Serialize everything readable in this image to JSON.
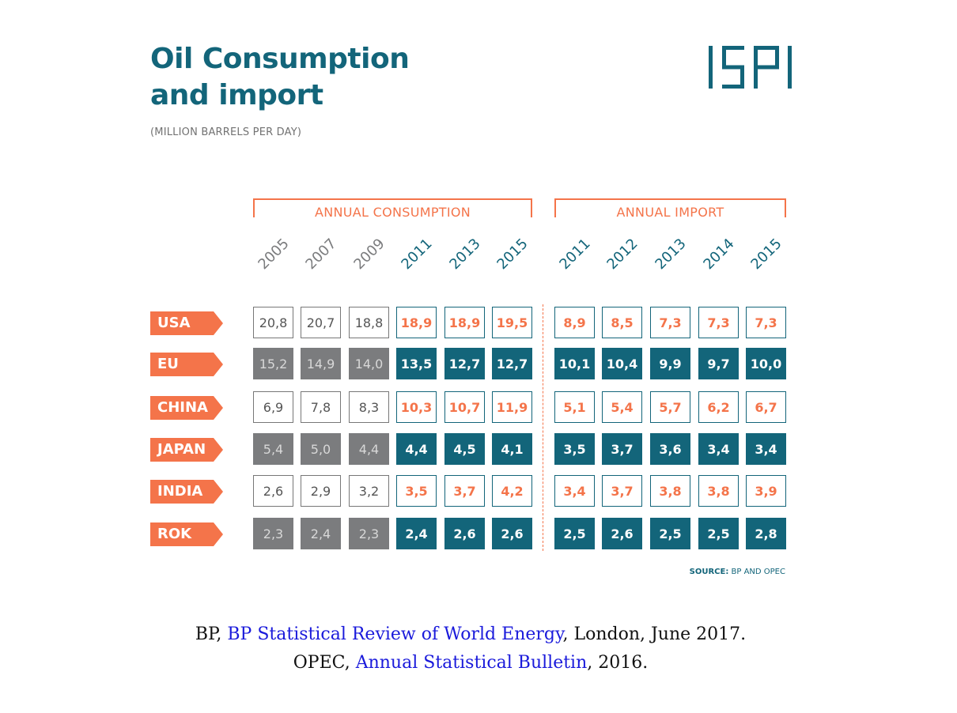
{
  "title_line1": "Oil Consumption",
  "title_line2": "and import",
  "subtitle": "(MILLION BARRELS PER DAY)",
  "logo": {
    "text": "ISPI",
    "color": "#13657a"
  },
  "colors": {
    "teal": "#13657a",
    "orange": "#f4744a",
    "gray": "#7b7c7e",
    "outline_gray": "#777777",
    "light_text": "#d8d8d8"
  },
  "source": {
    "label": "SOURCE:",
    "text": "BP AND OPEC"
  },
  "references": [
    {
      "prefix": "BP, ",
      "link": "BP Statistical Review of World Energy",
      "suffix": ", London, June 2017."
    },
    {
      "prefix": "OPEC, ",
      "link": "Annual Statistical Bulletin",
      "suffix": ", 2016."
    }
  ],
  "chart_data": {
    "type": "table",
    "title": "Oil Consumption and import",
    "subtitle": "(MILLION BARRELS PER DAY)",
    "groups": [
      {
        "name": "ANNUAL CONSUMPTION",
        "years": [
          "2005",
          "2007",
          "2009",
          "2011",
          "2013",
          "2015"
        ]
      },
      {
        "name": "ANNUAL IMPORT",
        "years": [
          "2011",
          "2012",
          "2013",
          "2014",
          "2015"
        ]
      }
    ],
    "rows": [
      {
        "country": "USA",
        "consumption": [
          "20,8",
          "20,7",
          "18,8",
          "18,9",
          "18,9",
          "19,5"
        ],
        "import": [
          "8,9",
          "8,5",
          "7,3",
          "7,3",
          "7,3"
        ]
      },
      {
        "country": "EU",
        "consumption": [
          "15,2",
          "14,9",
          "14,0",
          "13,5",
          "12,7",
          "12,7"
        ],
        "import": [
          "10,1",
          "10,4",
          "9,9",
          "9,7",
          "10,0"
        ]
      },
      {
        "country": "CHINA",
        "consumption": [
          "6,9",
          "7,8",
          "8,3",
          "10,3",
          "10,7",
          "11,9"
        ],
        "import": [
          "5,1",
          "5,4",
          "5,7",
          "6,2",
          "6,7"
        ]
      },
      {
        "country": "JAPAN",
        "consumption": [
          "5,4",
          "5,0",
          "4,4",
          "4,4",
          "4,5",
          "4,1"
        ],
        "import": [
          "3,5",
          "3,7",
          "3,6",
          "3,4",
          "3,4"
        ]
      },
      {
        "country": "INDIA",
        "consumption": [
          "2,6",
          "2,9",
          "3,2",
          "3,5",
          "3,7",
          "4,2"
        ],
        "import": [
          "3,4",
          "3,7",
          "3,8",
          "3,8",
          "3,9"
        ]
      },
      {
        "country": "ROK",
        "consumption": [
          "2,3",
          "2,4",
          "2,3",
          "2,4",
          "2,6",
          "2,6"
        ],
        "import": [
          "2,5",
          "2,6",
          "2,5",
          "2,5",
          "2,8"
        ]
      }
    ]
  }
}
